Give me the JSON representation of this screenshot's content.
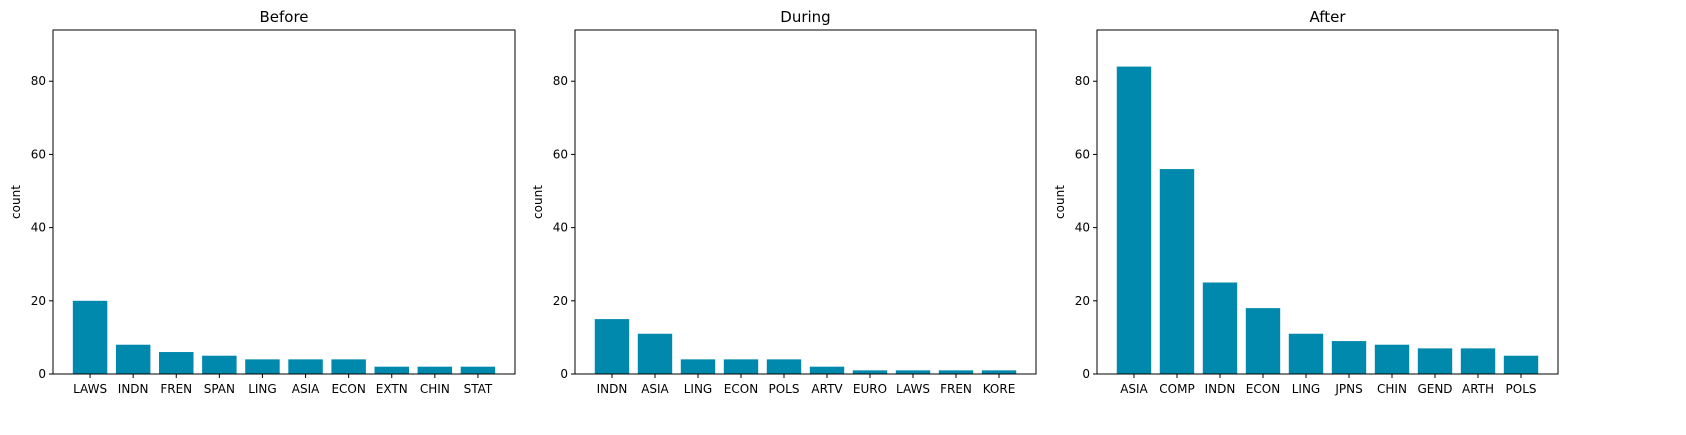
{
  "chart_data": [
    {
      "type": "bar",
      "title": "Before",
      "xlabel": "",
      "ylabel": "count",
      "ylim": [
        0,
        94
      ],
      "yticks": [
        0,
        20,
        40,
        60,
        80
      ],
      "bar_color": "#0088ad",
      "categories": [
        "LAWS",
        "INDN",
        "FREN",
        "SPAN",
        "LING",
        "ASIA",
        "ECON",
        "EXTN",
        "CHIN",
        "STAT"
      ],
      "values": [
        20,
        8,
        6,
        5,
        4,
        4,
        4,
        2,
        2,
        2
      ]
    },
    {
      "type": "bar",
      "title": "During",
      "xlabel": "",
      "ylabel": "count",
      "ylim": [
        0,
        94
      ],
      "yticks": [
        0,
        20,
        40,
        60,
        80
      ],
      "bar_color": "#0088ad",
      "categories": [
        "INDN",
        "ASIA",
        "LING",
        "ECON",
        "POLS",
        "ARTV",
        "EURO",
        "LAWS",
        "FREN",
        "KORE"
      ],
      "values": [
        15,
        11,
        4,
        4,
        4,
        2,
        1,
        1,
        1,
        1
      ]
    },
    {
      "type": "bar",
      "title": "After",
      "xlabel": "",
      "ylabel": "count",
      "ylim": [
        0,
        94
      ],
      "yticks": [
        0,
        20,
        40,
        60,
        80
      ],
      "bar_color": "#0088ad",
      "categories": [
        "ASIA",
        "COMP",
        "INDN",
        "ECON",
        "LING",
        "JPNS",
        "CHIN",
        "GEND",
        "ARTH",
        "POLS"
      ],
      "values": [
        84,
        56,
        25,
        18,
        11,
        9,
        8,
        7,
        7,
        5
      ]
    }
  ]
}
